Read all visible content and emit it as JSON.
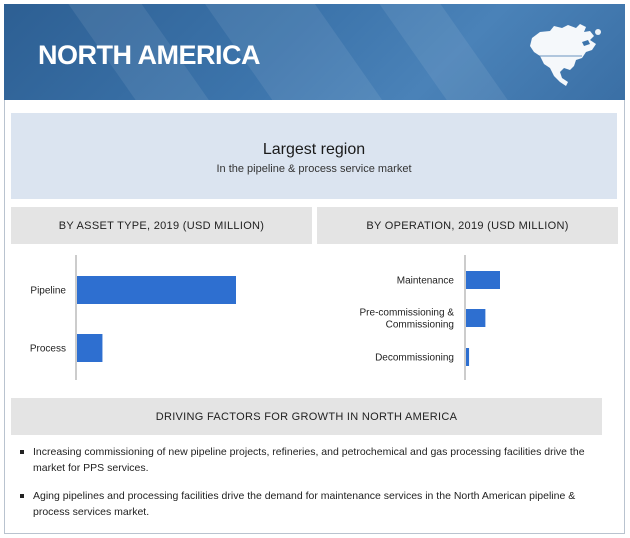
{
  "header": {
    "title": "NORTH AMERICA",
    "map_icon": "north-america-map-icon"
  },
  "largest_region": {
    "title": "Largest region",
    "subtitle": "In the pipeline & process service market"
  },
  "panels": {
    "asset_type_title": "BY ASSET TYPE, 2019 (USD MILLION)",
    "operation_title": "BY OPERATION, 2019 (USD MILLION)"
  },
  "chart_data": [
    {
      "type": "bar",
      "orientation": "horizontal",
      "title": "BY ASSET TYPE, 2019 (USD MILLION)",
      "categories": [
        "Pipeline",
        "Process"
      ],
      "values": [
        100,
        16
      ],
      "color": "#2e6fd0"
    },
    {
      "type": "bar",
      "orientation": "horizontal",
      "title": "BY OPERATION, 2019 (USD MILLION)",
      "categories": [
        "Maintenance",
        "Pre-commissioning & Commissioning",
        "Decommissioning"
      ],
      "values": [
        100,
        57,
        9
      ],
      "color": "#2e6fd0"
    }
  ],
  "drivers": {
    "title": "DRIVING FACTORS FOR GROWTH IN NORTH AMERICA",
    "items": [
      "Increasing commissioning of new pipeline projects, refineries, and petrochemical and gas processing facilities drive the market for PPS services.",
      "Aging pipelines and processing facilities drive the demand for maintenance services in the North American pipeline & process services market."
    ]
  },
  "colors": {
    "header_blue": "#3c74ab",
    "bar_blue": "#2e6fd0",
    "panel_gray": "#e4e4e4",
    "light_blue": "#dbe4f0"
  }
}
